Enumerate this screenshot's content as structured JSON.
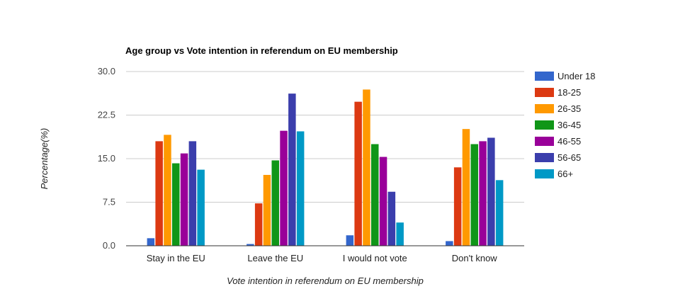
{
  "chart_data": {
    "type": "bar",
    "title": "Age group vs Vote intention in referendum on EU membership",
    "xlabel": "Vote intention in referendum on EU membership",
    "ylabel": "Percentage(%)",
    "ylim": [
      0,
      30
    ],
    "yticks": [
      "0.0",
      "7.5",
      "15.0",
      "22.5",
      "30.0"
    ],
    "ytick_values": [
      0,
      7.5,
      15,
      22.5,
      30
    ],
    "grid": true,
    "legend_position": "right",
    "categories": [
      "Stay in the EU",
      "Leave the EU",
      "I would not vote",
      "Don't know"
    ],
    "series": [
      {
        "name": "Under 18",
        "color": "#3366cc",
        "values": [
          1.3,
          0.3,
          1.8,
          0.8
        ]
      },
      {
        "name": "18-25",
        "color": "#dc3912",
        "values": [
          18.0,
          7.3,
          24.8,
          13.5
        ]
      },
      {
        "name": "26-35",
        "color": "#ff9900",
        "values": [
          19.1,
          12.2,
          26.9,
          20.1
        ]
      },
      {
        "name": "36-45",
        "color": "#109618",
        "values": [
          14.2,
          14.7,
          17.5,
          17.5
        ]
      },
      {
        "name": "46-55",
        "color": "#990099",
        "values": [
          15.9,
          19.8,
          15.3,
          18.0
        ]
      },
      {
        "name": "56-65",
        "color": "#3b3eac",
        "values": [
          18.0,
          26.2,
          9.3,
          18.6
        ]
      },
      {
        "name": "66+",
        "color": "#0099c6",
        "values": [
          13.1,
          19.7,
          4.0,
          11.3
        ]
      }
    ]
  }
}
